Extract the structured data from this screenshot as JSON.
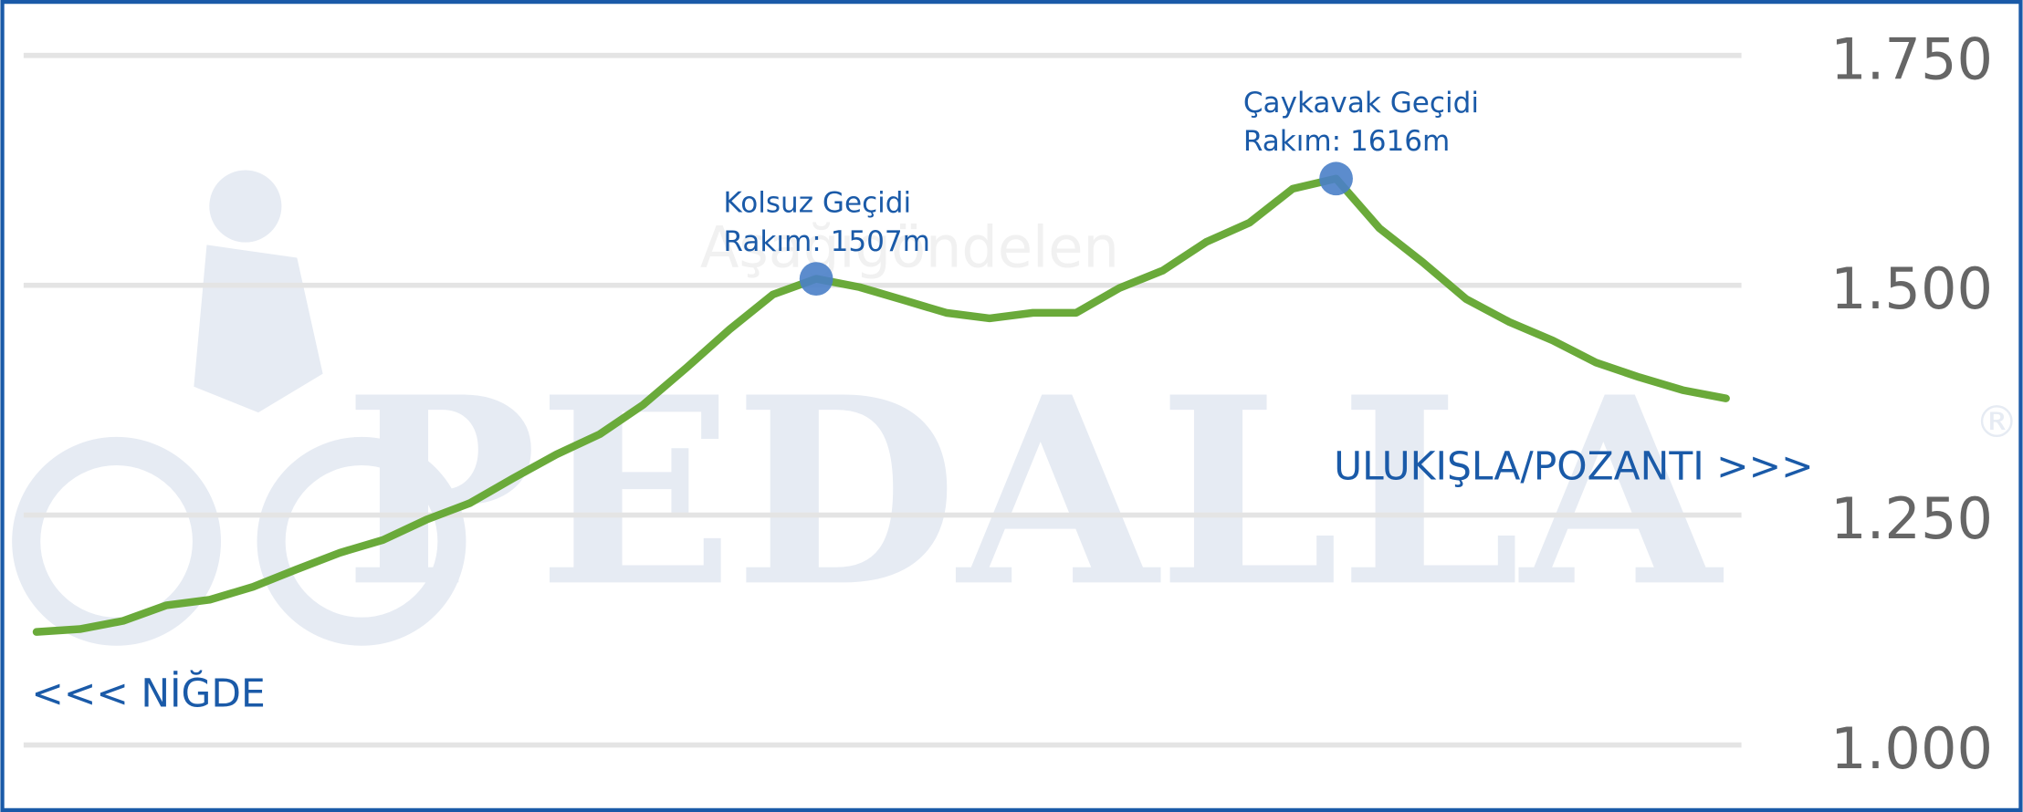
{
  "chart_data": {
    "type": "line",
    "watermark": "PEDALLA",
    "watermark_mark": "®",
    "watermark_place": "Aşağıgöndelen",
    "start_label": "<<< NİĞDE",
    "end_label": "ULUKIŞLA/POZANTI >>>",
    "series": [
      {
        "color": "#6aaa3a",
        "values": [
          1123,
          1126,
          1135,
          1152,
          1158,
          1172,
          1191,
          1209,
          1223,
          1245,
          1263,
          1290,
          1316,
          1338,
          1370,
          1410,
          1452,
          1490,
          1507,
          1498,
          1484,
          1470,
          1464,
          1470,
          1470,
          1497,
          1516,
          1547,
          1568,
          1605,
          1616,
          1562,
          1525,
          1485,
          1460,
          1440,
          1416,
          1400,
          1386,
          1377
        ]
      }
    ],
    "annotations": [
      {
        "value": 1507,
        "lines": [
          "Kolsuz Geçidi",
          "Rakım: 1507m"
        ]
      },
      {
        "value": 1616,
        "lines": [
          "Çaykavak Geçidi",
          "Rakım: 1616m"
        ]
      }
    ],
    "marker_color": "#4a7fc8",
    "ylim": [
      1000,
      1750
    ],
    "yticks": [
      {
        "value": 1000,
        "label": "1.000"
      },
      {
        "value": 1250,
        "label": "1.250"
      },
      {
        "value": 1500,
        "label": "1.500"
      },
      {
        "value": 1750,
        "label": "1.750"
      }
    ],
    "grid": true
  }
}
